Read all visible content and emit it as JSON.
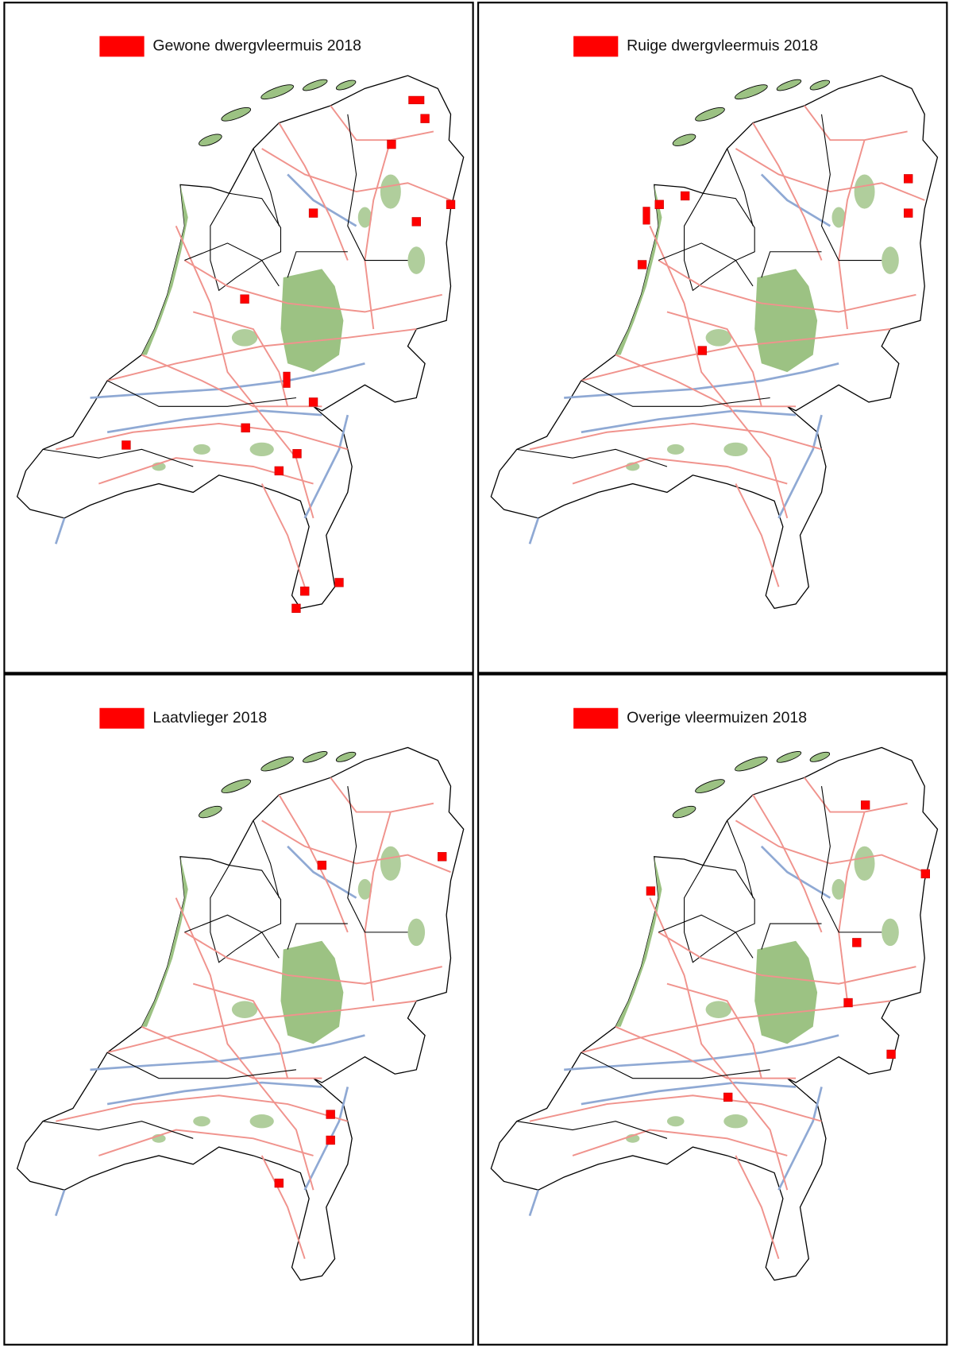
{
  "panels": [
    {
      "legend": "Gewone dwergvleermuis 2018"
    },
    {
      "legend": "Ruige dwergvleermuis 2018"
    },
    {
      "legend": "Laatvlieger 2018"
    },
    {
      "legend": "Overige vleermuizen 2018"
    }
  ]
}
